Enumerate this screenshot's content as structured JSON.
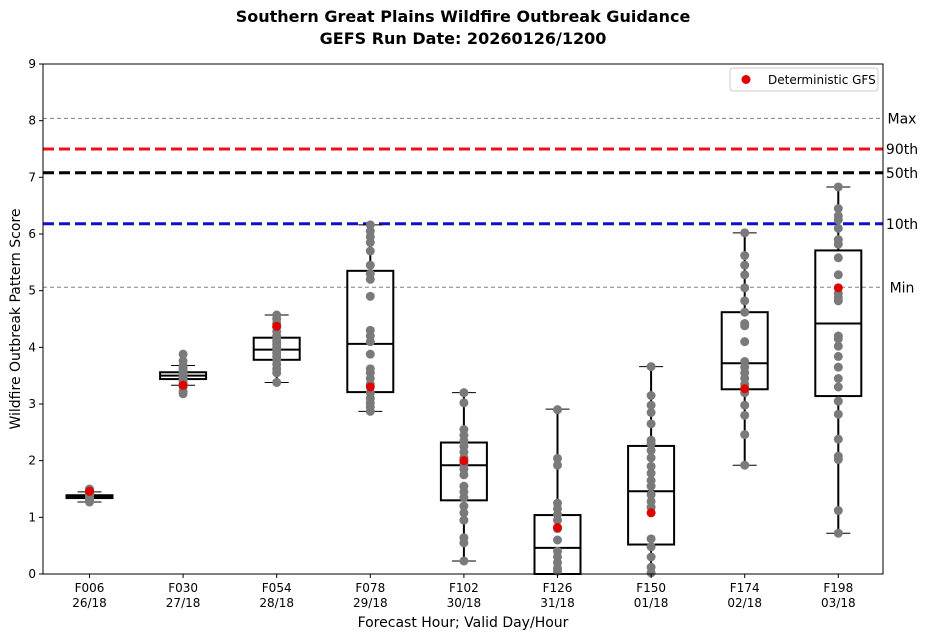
{
  "chart_data": {
    "type": "box",
    "title_line1": "Southern Great Plains Wildfire Outbreak Guidance",
    "title_line2": "GEFS Run Date: 20260126/1200",
    "xlabel": "Forecast Hour; Valid Day/Hour",
    "ylabel": "Wildfire Outbreak Pattern Score",
    "ylim": [
      0,
      9
    ],
    "yticks": [
      "0",
      "1",
      "2",
      "3",
      "4",
      "5",
      "6",
      "7",
      "8",
      "9"
    ],
    "legend_label": "Deterministic GFS",
    "legend_position": "top-right",
    "colors": {
      "member": "#7a7a7a",
      "deterministic": "#e00000",
      "max_line": "#808080",
      "min_line": "#808080",
      "p90_line": "#ee1111",
      "p50_line": "#000000",
      "p10_line": "#1010cc"
    },
    "reference_lines": [
      {
        "key": "max",
        "label": "Max",
        "value": 8.04
      },
      {
        "key": "p90",
        "label": "90th",
        "value": 7.5
      },
      {
        "key": "p50",
        "label": "50th",
        "value": 7.08
      },
      {
        "key": "p10",
        "label": "10th",
        "value": 6.18
      },
      {
        "key": "min",
        "label": "Min",
        "value": 5.06
      }
    ],
    "categories": [
      {
        "hour": "F006",
        "valid": "26/18",
        "box": {
          "whislo": 1.27,
          "q1": 1.34,
          "med": 1.37,
          "q3": 1.39,
          "whishi": 1.45
        },
        "deterministic": 1.46,
        "members": [
          1.27,
          1.3,
          1.32,
          1.34,
          1.35,
          1.36,
          1.37,
          1.37,
          1.38,
          1.39,
          1.39,
          1.4,
          1.42,
          1.44,
          1.45,
          1.48,
          1.5
        ]
      },
      {
        "hour": "F030",
        "valid": "27/18",
        "box": {
          "whislo": 3.33,
          "q1": 3.44,
          "med": 3.5,
          "q3": 3.56,
          "whishi": 3.68
        },
        "deterministic": 3.33,
        "members": [
          3.18,
          3.22,
          3.3,
          3.36,
          3.4,
          3.43,
          3.46,
          3.48,
          3.5,
          3.52,
          3.54,
          3.56,
          3.58,
          3.62,
          3.66,
          3.68,
          3.76,
          3.88
        ]
      },
      {
        "hour": "F054",
        "valid": "28/18",
        "box": {
          "whislo": 3.38,
          "q1": 3.78,
          "med": 3.96,
          "q3": 4.17,
          "whishi": 4.57
        },
        "deterministic": 4.37,
        "members": [
          3.38,
          3.55,
          3.62,
          3.7,
          3.78,
          3.84,
          3.9,
          3.96,
          4.0,
          4.05,
          4.1,
          4.15,
          4.2,
          4.28,
          4.36,
          4.42,
          4.5,
          4.57
        ]
      },
      {
        "hour": "F078",
        "valid": "29/18",
        "box": {
          "whislo": 2.87,
          "q1": 3.21,
          "med": 4.06,
          "q3": 5.35,
          "whishi": 6.16
        },
        "deterministic": 3.3,
        "members": [
          2.87,
          2.95,
          3.02,
          3.1,
          3.2,
          3.35,
          3.45,
          3.55,
          3.62,
          3.88,
          4.1,
          4.2,
          4.3,
          4.9,
          5.2,
          5.3,
          5.45,
          5.7,
          5.85,
          5.95,
          6.05,
          6.16
        ]
      },
      {
        "hour": "F102",
        "valid": "30/18",
        "box": {
          "whislo": 0.23,
          "q1": 1.3,
          "med": 1.92,
          "q3": 2.32,
          "whishi": 3.2
        },
        "deterministic": 2.0,
        "members": [
          0.23,
          0.55,
          0.64,
          0.95,
          1.08,
          1.2,
          1.35,
          1.45,
          1.55,
          1.75,
          1.85,
          1.95,
          2.05,
          2.15,
          2.25,
          2.35,
          2.45,
          2.55,
          3.02,
          3.2
        ]
      },
      {
        "hour": "F126",
        "valid": "31/18",
        "box": {
          "whislo": 0.0,
          "q1": 0.0,
          "med": 0.46,
          "q3": 1.04,
          "whishi": 2.91
        },
        "deterministic": 0.82,
        "members": [
          0.05,
          0.1,
          0.2,
          0.3,
          0.4,
          0.6,
          0.8,
          0.95,
          1.05,
          1.15,
          1.25,
          1.92,
          2.04,
          2.9
        ]
      },
      {
        "hour": "F150",
        "valid": "01/18",
        "box": {
          "whislo": 0.0,
          "q1": 0.52,
          "med": 1.46,
          "q3": 2.26,
          "whishi": 3.66
        },
        "deterministic": 1.08,
        "members": [
          0.02,
          0.12,
          0.3,
          0.48,
          0.62,
          1.18,
          1.28,
          1.4,
          1.55,
          1.65,
          1.78,
          1.9,
          2.05,
          2.18,
          2.3,
          2.36,
          2.65,
          2.85,
          2.98,
          3.15,
          3.66
        ]
      },
      {
        "hour": "F174",
        "valid": "02/18",
        "box": {
          "whislo": 1.92,
          "q1": 3.26,
          "med": 3.72,
          "q3": 4.62,
          "whishi": 6.02
        },
        "deterministic": 3.27,
        "members": [
          1.92,
          2.46,
          2.8,
          2.98,
          3.2,
          3.35,
          3.45,
          3.55,
          3.65,
          3.75,
          4.1,
          4.38,
          4.42,
          4.62,
          4.82,
          5.05,
          5.28,
          5.45,
          5.62,
          6.02
        ]
      },
      {
        "hour": "F198",
        "valid": "03/18",
        "box": {
          "whislo": 0.72,
          "q1": 3.14,
          "med": 4.42,
          "q3": 5.71,
          "whishi": 6.83
        },
        "deterministic": 5.05,
        "members": [
          0.72,
          1.12,
          2.02,
          2.08,
          2.38,
          2.82,
          3.05,
          3.3,
          3.45,
          3.65,
          3.84,
          4.02,
          4.15,
          4.2,
          4.82,
          4.88,
          4.95,
          5.28,
          5.58,
          5.82,
          5.9,
          6.1,
          6.25,
          6.32,
          6.45,
          6.83
        ]
      }
    ]
  }
}
